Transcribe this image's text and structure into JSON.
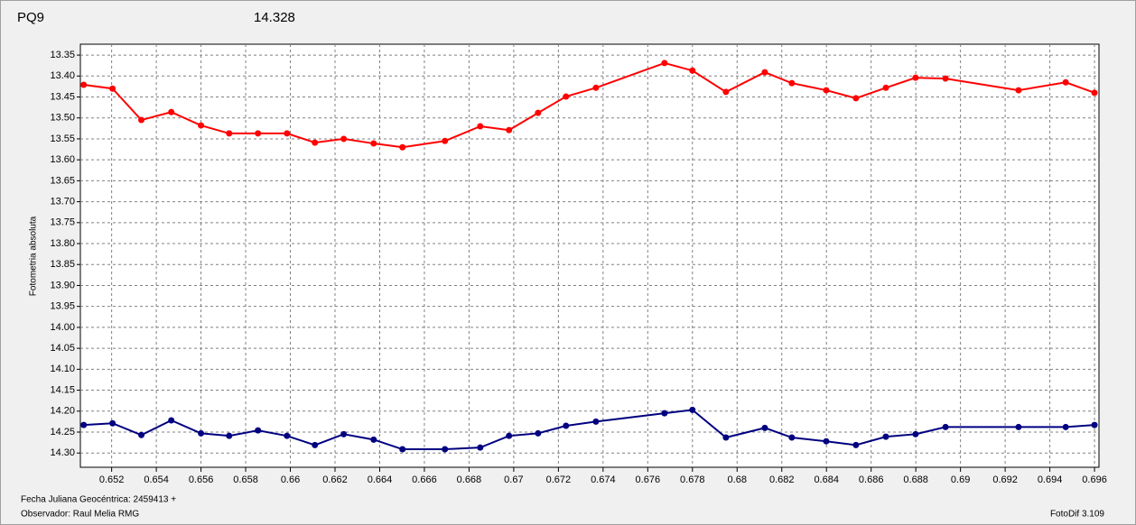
{
  "chart_data": {
    "type": "line",
    "header_left": "PQ9",
    "header_left_color": "#e00000",
    "header_right": "14.328",
    "header_right_color": "#1a237e",
    "y_label": "Fotometria absoluta",
    "footer_lines": [
      "Fecha Juliana Geocéntrica: 2459413 +",
      "Observador: Raul Melia RMG"
    ],
    "footer_right": "FotoDif 3.109",
    "x": [
      0.65075,
      0.65204,
      0.65333,
      0.65467,
      0.656,
      0.65726,
      0.65855,
      0.65985,
      0.6611,
      0.66239,
      0.66373,
      0.66502,
      0.66692,
      0.6685,
      0.66979,
      0.67109,
      0.67234,
      0.67368,
      0.67675,
      0.678,
      0.6795,
      0.68124,
      0.68245,
      0.68399,
      0.68532,
      0.68666,
      0.68799,
      0.68933,
      0.6926,
      0.69471,
      0.696
    ],
    "series": [
      {
        "color": "#ff0000",
        "values": [
          13.421,
          13.43,
          13.505,
          13.486,
          13.518,
          13.537,
          13.537,
          13.537,
          13.559,
          13.55,
          13.561,
          13.57,
          13.555,
          13.52,
          13.529,
          13.488,
          13.449,
          13.428,
          13.369,
          13.387,
          13.438,
          13.391,
          13.417,
          13.434,
          13.453,
          13.428,
          13.404,
          13.406,
          13.434,
          13.415,
          13.44
        ]
      },
      {
        "color": "#000080",
        "values": [
          14.233,
          14.229,
          14.257,
          14.222,
          14.253,
          14.259,
          14.246,
          14.259,
          14.281,
          14.255,
          14.268,
          14.291,
          14.291,
          14.287,
          14.259,
          14.253,
          14.235,
          14.225,
          14.205,
          14.197,
          14.263,
          14.24,
          14.263,
          14.272,
          14.281,
          14.261,
          14.255,
          14.238,
          14.238,
          14.238,
          14.233
        ]
      }
    ],
    "xlim": [
      0.6506,
      0.6962
    ],
    "xticks": [
      0.652,
      0.654,
      0.656,
      0.658,
      0.66,
      0.662,
      0.664,
      0.666,
      0.668,
      0.67,
      0.672,
      0.674,
      0.676,
      0.678,
      0.68,
      0.682,
      0.684,
      0.686,
      0.688,
      0.69,
      0.692,
      0.694,
      0.696
    ],
    "ylim": [
      13.324,
      14.334
    ],
    "y_reversed": true,
    "yticks": [
      13.35,
      {
        "value": 13.4,
        "label": "13.40"
      },
      13.45,
      {
        "value": 13.5,
        "label": "13.50"
      },
      13.55,
      {
        "value": 13.6,
        "label": "13.60"
      },
      13.65,
      {
        "value": 13.7,
        "label": "13.70"
      },
      13.75,
      {
        "value": 13.8,
        "label": "13.80"
      },
      13.85,
      {
        "value": 13.9,
        "label": "13.90"
      },
      13.95,
      {
        "value": 14,
        "label": "14.00"
      },
      14.05,
      {
        "value": 14.1,
        "label": "14.10"
      },
      14.15,
      {
        "value": 14.2,
        "label": "14.20"
      },
      14.25,
      {
        "value": 14.3,
        "label": "14.30"
      }
    ],
    "grid": true
  }
}
